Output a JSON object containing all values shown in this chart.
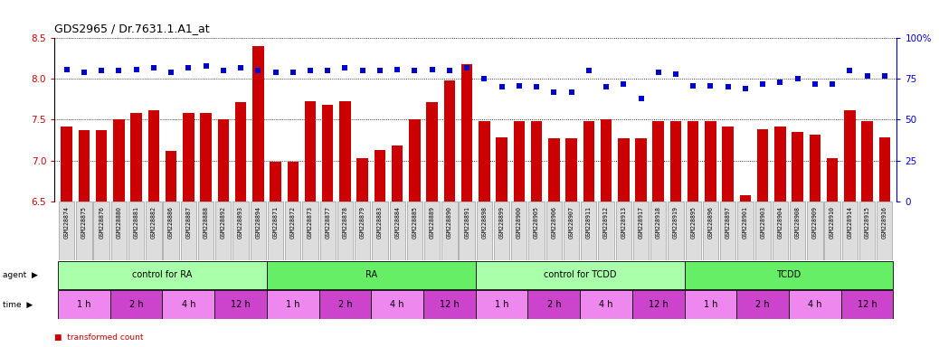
{
  "title": "GDS2965 / Dr.7631.1.A1_at",
  "samples": [
    "GSM228874",
    "GSM228875",
    "GSM228876",
    "GSM228880",
    "GSM228881",
    "GSM228882",
    "GSM228886",
    "GSM228887",
    "GSM228888",
    "GSM228892",
    "GSM228893",
    "GSM228894",
    "GSM228871",
    "GSM228872",
    "GSM228873",
    "GSM228877",
    "GSM228878",
    "GSM228879",
    "GSM228883",
    "GSM228884",
    "GSM228885",
    "GSM228889",
    "GSM228890",
    "GSM228891",
    "GSM228898",
    "GSM228899",
    "GSM228900",
    "GSM228905",
    "GSM228906",
    "GSM228907",
    "GSM228911",
    "GSM228912",
    "GSM228913",
    "GSM228917",
    "GSM228918",
    "GSM228919",
    "GSM228895",
    "GSM228896",
    "GSM228897",
    "GSM228901",
    "GSM228903",
    "GSM228904",
    "GSM228908",
    "GSM228909",
    "GSM228910",
    "GSM228914",
    "GSM228915",
    "GSM228916"
  ],
  "bar_values": [
    7.42,
    7.37,
    7.37,
    7.5,
    7.58,
    7.62,
    7.12,
    7.58,
    7.58,
    7.51,
    7.72,
    8.4,
    6.98,
    6.98,
    7.73,
    7.68,
    7.73,
    7.03,
    7.13,
    7.18,
    7.5,
    7.72,
    7.98,
    8.18,
    7.48,
    7.28,
    7.48,
    7.48,
    7.27,
    7.27,
    7.48,
    7.5,
    7.27,
    7.27,
    7.48,
    7.48,
    7.48,
    7.48,
    7.42,
    6.58,
    7.38,
    7.42,
    7.35,
    7.32,
    7.03,
    7.62,
    7.48,
    7.28
  ],
  "percentile_values": [
    81,
    79,
    80,
    80,
    81,
    82,
    79,
    82,
    83,
    80,
    82,
    80,
    79,
    79,
    80,
    80,
    82,
    80,
    80,
    81,
    80,
    81,
    80,
    82,
    75,
    70,
    71,
    70,
    67,
    67,
    80,
    70,
    72,
    63,
    79,
    78,
    71,
    71,
    70,
    69,
    72,
    73,
    75,
    72,
    72,
    80,
    77,
    77
  ],
  "ylim_left": [
    6.5,
    8.5
  ],
  "ylim_right": [
    0,
    100
  ],
  "yticks_left": [
    6.5,
    7.0,
    7.5,
    8.0,
    8.5
  ],
  "yticks_right": [
    0,
    25,
    50,
    75,
    100
  ],
  "ytick_labels_right": [
    "0",
    "25",
    "50",
    "75",
    "100%"
  ],
  "bar_color": "#cc0000",
  "dot_color": "#0000cc",
  "grid_color": "#000000",
  "agent_groups": [
    {
      "label": "control for RA",
      "start": 0,
      "end": 12,
      "color": "#aaffaa"
    },
    {
      "label": "RA",
      "start": 12,
      "end": 24,
      "color": "#66ee66"
    },
    {
      "label": "control for TCDD",
      "start": 24,
      "end": 36,
      "color": "#aaffaa"
    },
    {
      "label": "TCDD",
      "start": 36,
      "end": 48,
      "color": "#66ee66"
    }
  ],
  "time_groups": [
    {
      "label": "1 h",
      "start": 0,
      "end": 3,
      "color": "#ee88ee"
    },
    {
      "label": "2 h",
      "start": 3,
      "end": 6,
      "color": "#cc44cc"
    },
    {
      "label": "4 h",
      "start": 6,
      "end": 9,
      "color": "#ee88ee"
    },
    {
      "label": "12 h",
      "start": 9,
      "end": 12,
      "color": "#cc44cc"
    },
    {
      "label": "1 h",
      "start": 12,
      "end": 15,
      "color": "#ee88ee"
    },
    {
      "label": "2 h",
      "start": 15,
      "end": 18,
      "color": "#cc44cc"
    },
    {
      "label": "4 h",
      "start": 18,
      "end": 21,
      "color": "#ee88ee"
    },
    {
      "label": "12 h",
      "start": 21,
      "end": 24,
      "color": "#cc44cc"
    },
    {
      "label": "1 h",
      "start": 24,
      "end": 27,
      "color": "#ee88ee"
    },
    {
      "label": "2 h",
      "start": 27,
      "end": 30,
      "color": "#cc44cc"
    },
    {
      "label": "4 h",
      "start": 30,
      "end": 33,
      "color": "#ee88ee"
    },
    {
      "label": "12 h",
      "start": 33,
      "end": 36,
      "color": "#cc44cc"
    },
    {
      "label": "1 h",
      "start": 36,
      "end": 39,
      "color": "#ee88ee"
    },
    {
      "label": "2 h",
      "start": 39,
      "end": 42,
      "color": "#cc44cc"
    },
    {
      "label": "4 h",
      "start": 42,
      "end": 45,
      "color": "#ee88ee"
    },
    {
      "label": "12 h",
      "start": 45,
      "end": 48,
      "color": "#cc44cc"
    }
  ],
  "background_color": "#ffffff",
  "label_bg_color": "#dddddd",
  "label_border_color": "#888888"
}
